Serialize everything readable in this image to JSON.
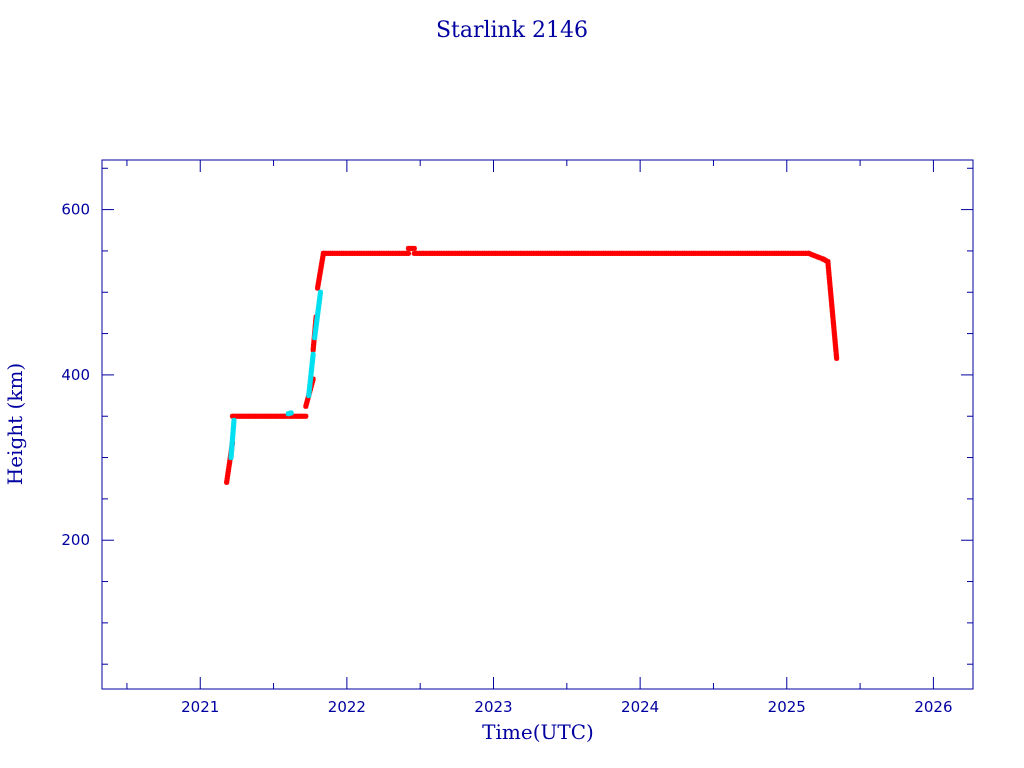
{
  "chart_data": {
    "type": "scatter",
    "title": "Starlink 2146",
    "xlabel": "Time(UTC)",
    "ylabel": "Height (km)",
    "xlim": [
      2020.33,
      2026.27
    ],
    "ylim": [
      20,
      660
    ],
    "x_ticks": [
      2021,
      2022,
      2023,
      2024,
      2025,
      2026
    ],
    "x_tick_labels": [
      "2021",
      "2022",
      "2023",
      "2024",
      "2025",
      "2026"
    ],
    "y_ticks": [
      200,
      400,
      600
    ],
    "y_tick_labels": [
      "200",
      "400",
      "600"
    ],
    "grid": false,
    "legend": "none",
    "colors": {
      "axis": "#0000a0",
      "primary": "#ff0000",
      "secondary": "#00e0f0"
    },
    "series": [
      {
        "color": "#ff0000",
        "marker": "star",
        "segments": [
          [
            [
              2021.18,
              270
            ],
            [
              2021.22,
              318
            ]
          ],
          [
            [
              2021.22,
              350
            ],
            [
              2021.72,
              350
            ]
          ],
          [
            [
              2021.72,
              362
            ],
            [
              2021.77,
              395
            ]
          ],
          [
            [
              2021.77,
              430
            ],
            [
              2021.79,
              470
            ]
          ],
          [
            [
              2021.8,
              505
            ],
            [
              2021.84,
              547
            ]
          ],
          [
            [
              2021.84,
              547
            ],
            [
              2022.42,
              547
            ]
          ],
          [
            [
              2022.42,
              553
            ],
            [
              2022.46,
              553
            ]
          ],
          [
            [
              2022.46,
              547
            ],
            [
              2025.15,
              547
            ]
          ],
          [
            [
              2025.15,
              547
            ],
            [
              2025.25,
              540
            ]
          ],
          [
            [
              2025.25,
              540
            ],
            [
              2025.28,
              537
            ]
          ],
          [
            [
              2025.28,
              537
            ],
            [
              2025.34,
              420
            ]
          ]
        ]
      },
      {
        "color": "#00e0f0",
        "marker": "star",
        "segments": [
          [
            [
              2021.21,
              300
            ],
            [
              2021.23,
              345
            ]
          ],
          [
            [
              2021.74,
              375
            ],
            [
              2021.77,
              425
            ]
          ],
          [
            [
              2021.78,
              445
            ],
            [
              2021.82,
              500
            ]
          ],
          [
            [
              2021.6,
              353
            ],
            [
              2021.62,
              354
            ]
          ]
        ]
      }
    ]
  }
}
